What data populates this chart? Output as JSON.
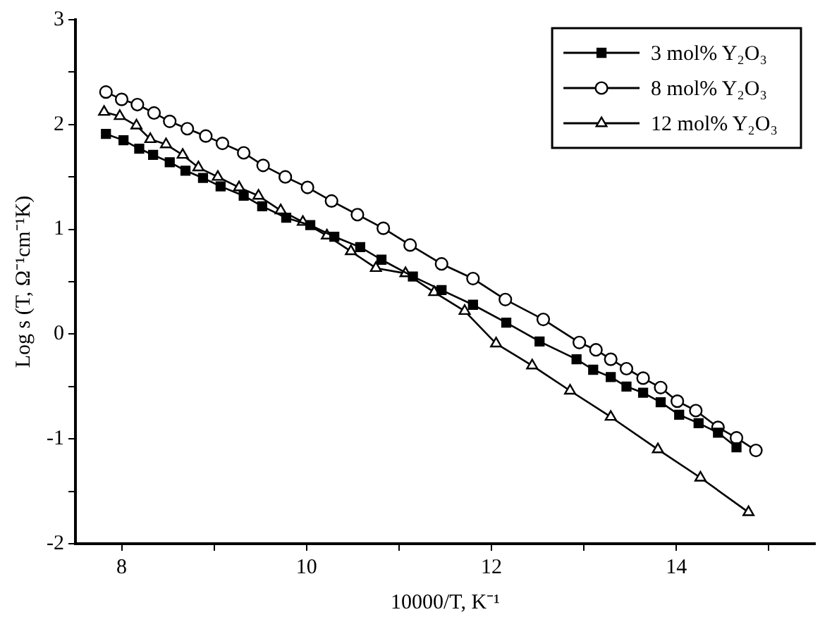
{
  "chart_data": {
    "type": "line",
    "xlabel": "10000/T, K⁻¹",
    "ylabel": "Log s (T, Ω⁻¹cm⁻¹K)",
    "xlim": [
      7.5,
      15.5
    ],
    "xticks": [
      8,
      {
        "value": 9,
        "label": null
      },
      10,
      {
        "value": 11,
        "label": null
      },
      12,
      {
        "value": 13,
        "label": null
      },
      14,
      {
        "value": 15,
        "label": null
      }
    ],
    "ylim": [
      -2,
      3
    ],
    "yticks": [
      -2,
      {
        "value": -1.5,
        "label": null
      },
      -1,
      {
        "value": -0.5,
        "label": null
      },
      0,
      {
        "value": 0.5,
        "label": null
      },
      1,
      {
        "value": 1.5,
        "label": null
      },
      2,
      {
        "value": 2.5,
        "label": null
      },
      3
    ],
    "grid": false,
    "legend": "top right",
    "line_style": "solid",
    "series": [
      {
        "name": "3 mol% Y₂O₃",
        "color": "#000000",
        "marker": "square",
        "x": [
          7.83,
          8.02,
          8.19,
          8.34,
          8.52,
          8.69,
          8.88,
          9.07,
          9.32,
          9.52,
          9.78,
          10.04,
          10.3,
          10.58,
          10.81,
          11.15,
          11.46,
          11.8,
          12.16,
          12.52,
          12.92,
          13.1,
          13.29,
          13.46,
          13.64,
          13.83,
          14.03,
          14.24,
          14.45,
          14.65
        ],
        "values": [
          1.91,
          1.85,
          1.77,
          1.71,
          1.64,
          1.56,
          1.49,
          1.41,
          1.32,
          1.22,
          1.11,
          1.04,
          0.93,
          0.83,
          0.71,
          0.55,
          0.42,
          0.28,
          0.11,
          -0.07,
          -0.24,
          -0.34,
          -0.41,
          -0.5,
          -0.56,
          -0.65,
          -0.77,
          -0.85,
          -0.94,
          -1.08
        ]
      },
      {
        "name": "8 mol% Y₂O₃",
        "color": "#000000",
        "marker": "circle",
        "x": [
          7.83,
          8.0,
          8.17,
          8.35,
          8.52,
          8.71,
          8.91,
          9.09,
          9.32,
          9.53,
          9.77,
          10.01,
          10.27,
          10.55,
          10.83,
          11.12,
          11.46,
          11.8,
          12.15,
          12.56,
          12.95,
          13.13,
          13.29,
          13.46,
          13.64,
          13.83,
          14.01,
          14.21,
          14.45,
          14.65,
          14.86
        ],
        "values": [
          2.31,
          2.24,
          2.19,
          2.11,
          2.03,
          1.96,
          1.89,
          1.82,
          1.73,
          1.61,
          1.5,
          1.4,
          1.27,
          1.14,
          1.01,
          0.85,
          0.67,
          0.53,
          0.33,
          0.14,
          -0.08,
          -0.15,
          -0.24,
          -0.33,
          -0.42,
          -0.51,
          -0.64,
          -0.73,
          -0.89,
          -0.99,
          -1.11
        ]
      },
      {
        "name": "12 mol% Y₂O₃",
        "color": "#000000",
        "marker": "triangle",
        "x": [
          7.81,
          7.98,
          8.16,
          8.31,
          8.48,
          8.66,
          8.83,
          9.04,
          9.27,
          9.48,
          9.72,
          9.96,
          10.22,
          10.48,
          10.75,
          11.07,
          11.38,
          11.71,
          12.05,
          12.44,
          12.85,
          13.29,
          13.8,
          14.26,
          14.78
        ],
        "values": [
          2.12,
          2.08,
          1.99,
          1.86,
          1.81,
          1.71,
          1.59,
          1.5,
          1.4,
          1.32,
          1.18,
          1.07,
          0.94,
          0.79,
          0.63,
          0.58,
          0.4,
          0.22,
          -0.09,
          -0.3,
          -0.54,
          -0.79,
          -1.1,
          -1.37,
          -1.7
        ]
      }
    ]
  }
}
